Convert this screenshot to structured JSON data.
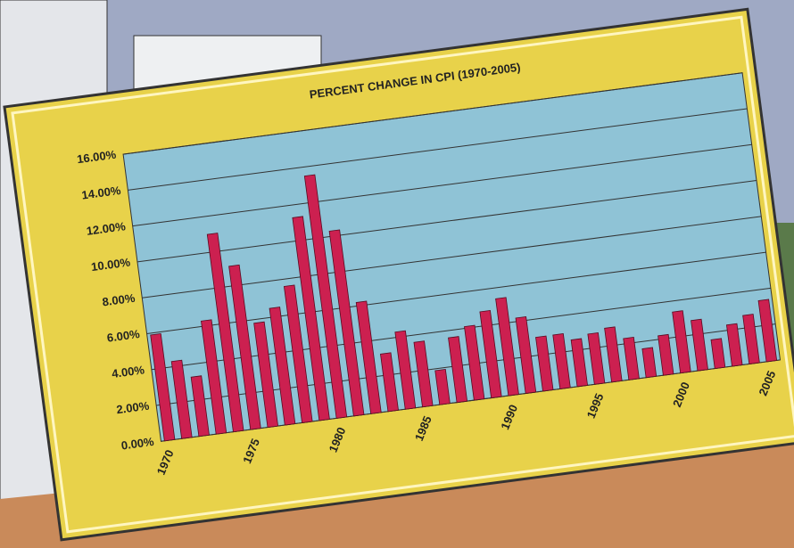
{
  "chart_data": {
    "type": "bar",
    "title": "PERCENT CHANGE IN CPI (1970-2005)",
    "categories": [
      "1970",
      null,
      null,
      null,
      null,
      "1975",
      null,
      null,
      null,
      null,
      "1980",
      null,
      null,
      null,
      null,
      "1985",
      null,
      null,
      null,
      null,
      "1990",
      null,
      null,
      null,
      null,
      "1995",
      null,
      null,
      null,
      null,
      "2000",
      null,
      null,
      null,
      null,
      "2005"
    ],
    "values": [
      5.9,
      4.3,
      3.3,
      6.3,
      11.0,
      9.1,
      5.8,
      6.5,
      7.6,
      11.3,
      13.5,
      10.3,
      6.2,
      3.2,
      4.3,
      3.6,
      1.9,
      3.6,
      4.1,
      4.8,
      5.4,
      4.2,
      3.0,
      3.0,
      2.6,
      2.8,
      3.0,
      2.3,
      1.6,
      2.2,
      3.4,
      2.8,
      1.6,
      2.3,
      2.7,
      3.4
    ],
    "color": "#cc2050",
    "ylim": [
      0,
      16
    ],
    "yticks": [
      {
        "value": 0,
        "label": "0.00%"
      },
      {
        "value": 2,
        "label": "2.00%"
      },
      {
        "value": 4,
        "label": "4.00%"
      },
      {
        "value": 6,
        "label": "6.00%"
      },
      {
        "value": 8,
        "label": "8.00%"
      },
      {
        "value": 10,
        "label": "10.00%"
      },
      {
        "value": 12,
        "label": "12.00%"
      },
      {
        "value": 14,
        "label": "14.00%"
      },
      {
        "value": 16,
        "label": "16.00%"
      }
    ],
    "grid": true
  }
}
